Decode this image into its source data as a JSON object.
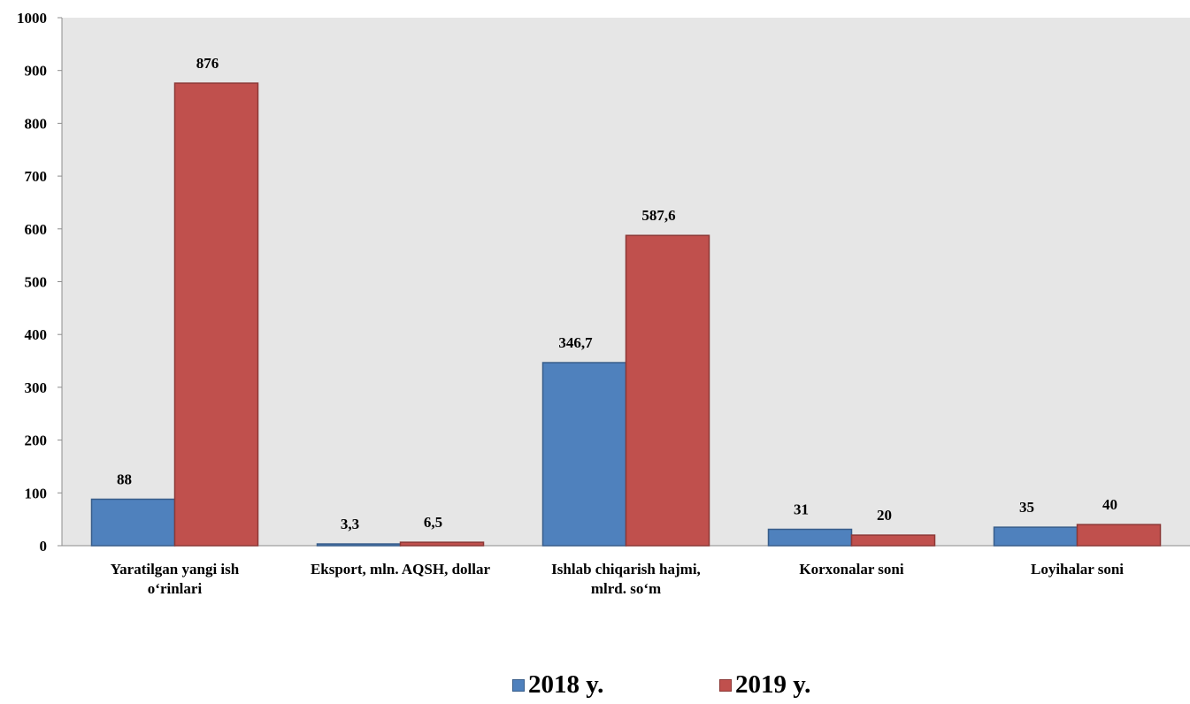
{
  "chart_data": {
    "type": "bar",
    "categories": [
      [
        "Yaratilgan yangi ish",
        "o‘rinlari"
      ],
      [
        "Eksport, mln. AQSH, dollar"
      ],
      [
        "Ishlab chiqarish hajmi,",
        "mlrd. so‘m"
      ],
      [
        "Korxonalar soni"
      ],
      [
        "Loyihalar soni"
      ]
    ],
    "series": [
      {
        "name": "2018 y.",
        "color": "#4F81BD",
        "stroke": "#385D8A",
        "values": [
          88,
          3.3,
          346.7,
          31,
          35
        ],
        "labels": [
          "88",
          "3,3",
          "346,7",
          "31",
          "35"
        ]
      },
      {
        "name": "2019 y.",
        "color": "#C0504D",
        "stroke": "#8C3836",
        "values": [
          876,
          6.5,
          587.6,
          20,
          40
        ],
        "labels": [
          "876",
          "6,5",
          "587,6",
          "20",
          "40"
        ]
      }
    ],
    "yticks": [
      "0",
      "100",
      "200",
      "300",
      "400",
      "500",
      "600",
      "700",
      "800",
      "900",
      "1000"
    ],
    "ylim": [
      0,
      1000
    ],
    "grid": false,
    "plot_background": "#E6E6E6",
    "legend_position": "bottom"
  }
}
